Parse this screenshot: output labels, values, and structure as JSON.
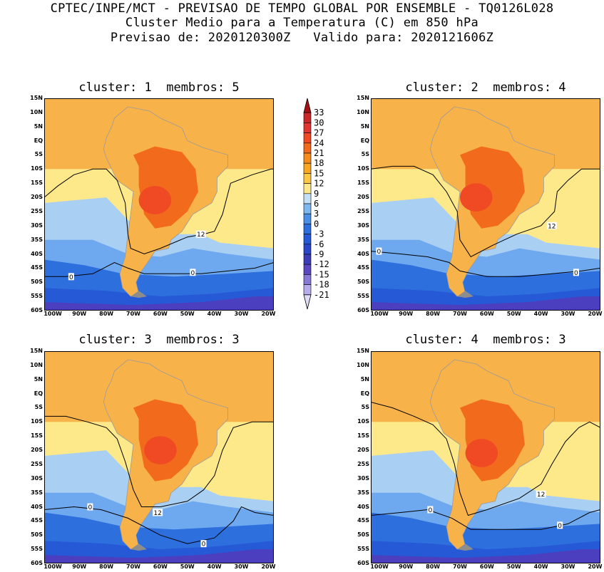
{
  "header": {
    "line1": "CPTEC/INPE/MCT - PREVISAO DE TEMPO GLOBAL POR ENSEMBLE - TQ0126L028",
    "line2": "Cluster Medio para a Temperatura (C) em 850 hPa",
    "line3": "Previsao de: 2020120300Z   Valido para: 2020121606Z"
  },
  "panels": [
    {
      "title": "cluster: 1  membros: 5"
    },
    {
      "title": "cluster: 2  membros: 4"
    },
    {
      "title": "cluster: 3  membros: 3"
    },
    {
      "title": "cluster: 4  membros: 3"
    }
  ],
  "lat_labels": [
    "15N",
    "10N",
    "5N",
    "EQ",
    "5S",
    "10S",
    "15S",
    "20S",
    "25S",
    "30S",
    "35S",
    "40S",
    "45S",
    "50S",
    "55S",
    "60S"
  ],
  "lon_labels": [
    "100W",
    "90W",
    "80W",
    "70W",
    "60W",
    "50W",
    "40W",
    "30W",
    "20W"
  ],
  "contour_labels": [
    "12",
    "0"
  ],
  "colorbar": {
    "levels": [
      "33",
      "30",
      "27",
      "24",
      "21",
      "18",
      "15",
      "12",
      "9",
      "6",
      "3",
      "0",
      "-3",
      "-6",
      "-9",
      "-12",
      "-15",
      "-18",
      "-21"
    ],
    "colors": [
      "#a50f15",
      "#c9282a",
      "#e03530",
      "#ef4a24",
      "#f26a1c",
      "#f68c1a",
      "#f9a623",
      "#fcc843",
      "#fde88a",
      "#c3e0f7",
      "#7eb8f0",
      "#4a90e6",
      "#2e6fde",
      "#2659d6",
      "#2a47c9",
      "#3b3cb6",
      "#5b47c0",
      "#8a78d6",
      "#b9acea",
      "#e3dcf7"
    ]
  },
  "palette": {
    "ocean_tropic": "#f8b24a",
    "ocean_mid": "#fde88a",
    "land_warm": "#f26a1c",
    "land_hot": "#ef4a24",
    "cool_light": "#a9cff3",
    "cool_mid": "#6ea8ee",
    "cool_deep": "#2e6fde",
    "cool_deeper": "#2659d6",
    "cool_violet": "#4b3fbf",
    "coast": "#9a9a9a",
    "contour": "#000000"
  }
}
